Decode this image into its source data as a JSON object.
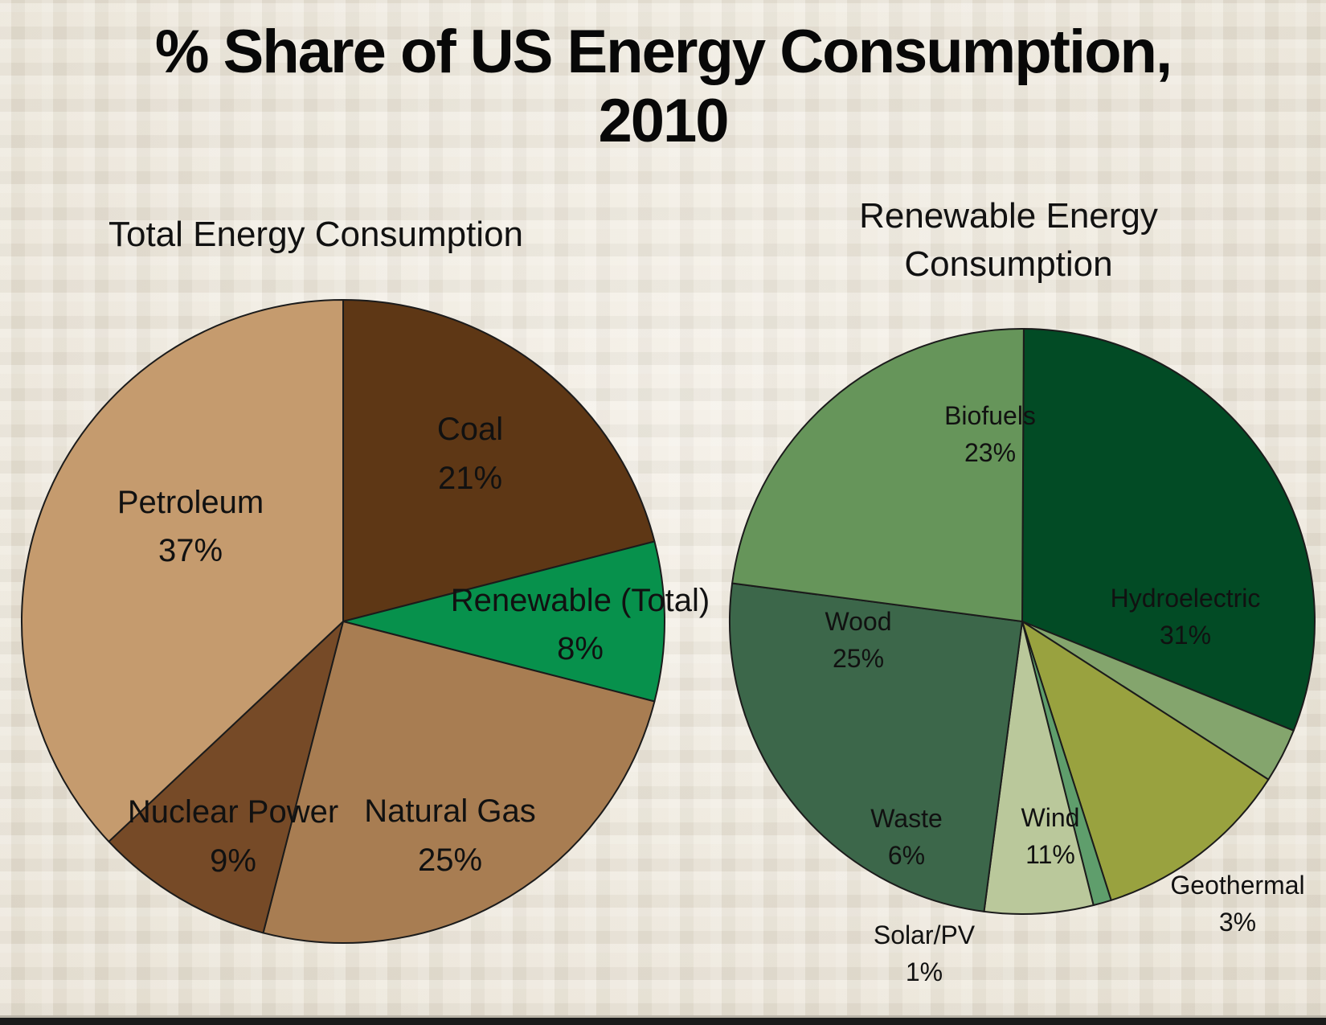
{
  "title_line1": "% Share of US Energy Consumption,",
  "title_line2": "2010",
  "chart_data": [
    {
      "type": "pie",
      "title": "Total Energy Consumption",
      "slices": [
        {
          "label": "Coal",
          "value": 21,
          "value_label": "21%",
          "color": "#5e3715"
        },
        {
          "label": "Renewable (Total)",
          "value": 8,
          "value_label": "8%",
          "color": "#07914c"
        },
        {
          "label": "Natural Gas",
          "value": 25,
          "value_label": "25%",
          "color": "#a87d52"
        },
        {
          "label": "Nuclear Power",
          "value": 9,
          "value_label": "9%",
          "color": "#764a27"
        },
        {
          "label": "Petroleum",
          "value": 37,
          "value_label": "37%",
          "color": "#c59b6e"
        }
      ]
    },
    {
      "type": "pie",
      "title": [
        "Renewable Energy",
        "Consumption"
      ],
      "slices": [
        {
          "label": "Hydroelectric",
          "value": 31,
          "value_label": "31%",
          "color": "#024b25"
        },
        {
          "label": "Geothermal",
          "value": 3,
          "value_label": "3%",
          "color": "#84a56d"
        },
        {
          "label": "Wind",
          "value": 11,
          "value_label": "11%",
          "color": "#99a23f"
        },
        {
          "label": "Solar/PV",
          "value": 1,
          "value_label": "1%",
          "color": "#5f9e6c"
        },
        {
          "label": "Waste",
          "value": 6,
          "value_label": "6%",
          "color": "#bac89b"
        },
        {
          "label": "Wood",
          "value": 25,
          "value_label": "25%",
          "color": "#3c674a"
        },
        {
          "label": "Biofuels",
          "value": 23,
          "value_label": "23%",
          "color": "#66955a"
        }
      ]
    }
  ]
}
